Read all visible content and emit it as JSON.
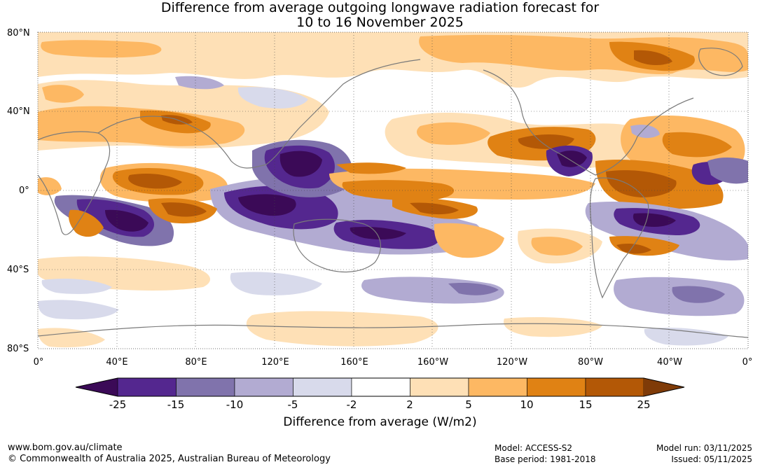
{
  "title": {
    "line1": "Difference from average outgoing longwave radiation forecast for",
    "line2": "10 to 16 November 2025"
  },
  "lat_labels": [
    "80°N",
    "40°N",
    "0°",
    "40°S",
    "80°S"
  ],
  "lon_labels": [
    "0°",
    "40°E",
    "80°E",
    "120°E",
    "160°E",
    "160°W",
    "120°W",
    "80°W",
    "40°W",
    "0°"
  ],
  "colorbar": {
    "ticks": [
      "-25",
      "-15",
      "-10",
      "-5",
      "-2",
      "2",
      "5",
      "10",
      "15",
      "25"
    ],
    "title": "Difference from average (W/m2)",
    "colors": {
      "lt_m25": "#3b0a57",
      "m25_m15": "#54278f",
      "m15_m10": "#8073ac",
      "m10_m5": "#b2abd2",
      "m5_m2": "#d8daeb",
      "m2_2": "#ffffff",
      "p2_5": "#fee0b6",
      "p5_10": "#fdb863",
      "p10_15": "#e08214",
      "p15_25": "#b35806",
      "gt_25": "#7f3b08"
    }
  },
  "footer": {
    "left1": "www.bom.gov.au/climate",
    "left2": "© Commonwealth of Australia 2025, Australian Bureau of Meteorology",
    "model": "Model: ACCESS-S2",
    "base": "Base period: 1981-2018",
    "run": "Model run: 03/11/2025",
    "issued": "Issued: 05/11/2025"
  }
}
